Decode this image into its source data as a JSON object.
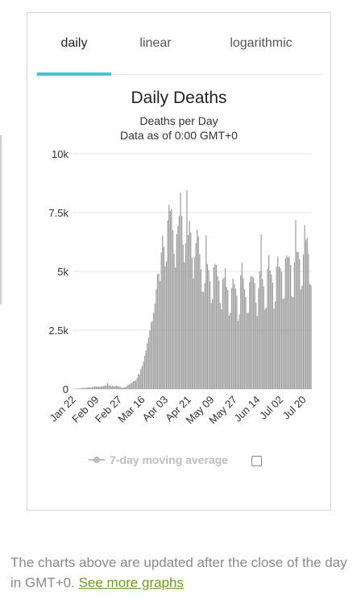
{
  "tabs": [
    {
      "label": "daily",
      "active": true
    },
    {
      "label": "linear",
      "active": false
    },
    {
      "label": "logarithmic",
      "active": false
    }
  ],
  "footer": {
    "text": "The charts above are updated after the close of the day in GMT+0. ",
    "link_label": "See more graphs"
  },
  "colors": {
    "bar": "#9e9e9e",
    "tab_underline": "#3ec6d8",
    "grid": "#e6e6e6",
    "link": "#6a9f1e",
    "legend": "#bdbdbd"
  },
  "chart_data": {
    "type": "bar",
    "title": "Daily Deaths",
    "subtitle_lines": [
      "Deaths per Day",
      "Data as of 0:00 GMT+0"
    ],
    "ylim": [
      0,
      10000
    ],
    "y_ticks": [
      {
        "value": 0,
        "label": "0"
      },
      {
        "value": 2500,
        "label": "2.5k"
      },
      {
        "value": 5000,
        "label": "5k"
      },
      {
        "value": 7500,
        "label": "7.5k"
      },
      {
        "value": 10000,
        "label": "10k"
      }
    ],
    "x_tick_labels": [
      "Jan 22",
      "Feb 09",
      "Feb 27",
      "Mar 16",
      "Apr 03",
      "Apr 21",
      "May 09",
      "May 27",
      "Jun 14",
      "Jul 02",
      "Jul 20"
    ],
    "x_tick_every": 18,
    "start_label": "Jan 22",
    "legend": {
      "label": "7-day moving average",
      "checked": false
    },
    "values": [
      17,
      0,
      9,
      16,
      15,
      25,
      26,
      43,
      46,
      45,
      57,
      64,
      66,
      72,
      66,
      86,
      89,
      98,
      107,
      97,
      107,
      102,
      107,
      114,
      122,
      150,
      149,
      256,
      141,
      143,
      99,
      142,
      106,
      116,
      148,
      119,
      115,
      91,
      53,
      58,
      64,
      79,
      110,
      181,
      188,
      233,
      266,
      326,
      342,
      360,
      467,
      640,
      610,
      840,
      977,
      1162,
      1403,
      1640,
      1941,
      2178,
      2479,
      2829,
      2897,
      3250,
      3630,
      4230,
      4880,
      4910,
      4590,
      5810,
      6520,
      6050,
      5220,
      5420,
      7170,
      7830,
      7570,
      7640,
      6760,
      5750,
      5160,
      6590,
      6930,
      7360,
      8350,
      7360,
      6130,
      5380,
      6190,
      8450,
      6550,
      7150,
      6660,
      5590,
      4700,
      5610,
      6210,
      6770,
      6490,
      5740,
      5080,
      4140,
      4120,
      4510,
      6530,
      5320,
      5060,
      4580,
      3660,
      3830,
      5170,
      5320,
      5280,
      4800,
      4610,
      3660,
      3390,
      4670,
      4740,
      5140,
      4340,
      4210,
      3120,
      3230,
      4290,
      4700,
      4470,
      4270,
      3960,
      2900,
      3170,
      4830,
      5370,
      4710,
      4240,
      3900,
      3220,
      3250,
      4540,
      4790,
      4790,
      4720,
      4500,
      3650,
      3100,
      4290,
      5000,
      6580,
      4670,
      4360,
      3380,
      3460,
      5100,
      5690,
      5030,
      4870,
      4520,
      3420,
      3720,
      5190,
      5630,
      5210,
      5130,
      4980,
      3820,
      3860,
      5560,
      5670,
      5590,
      5650,
      5280,
      3940,
      3900,
      5390,
      7170,
      5830,
      5820,
      5520,
      4230,
      4390,
      5710,
      6970,
      6330,
      6430,
      5740,
      4470,
      4420
    ]
  }
}
